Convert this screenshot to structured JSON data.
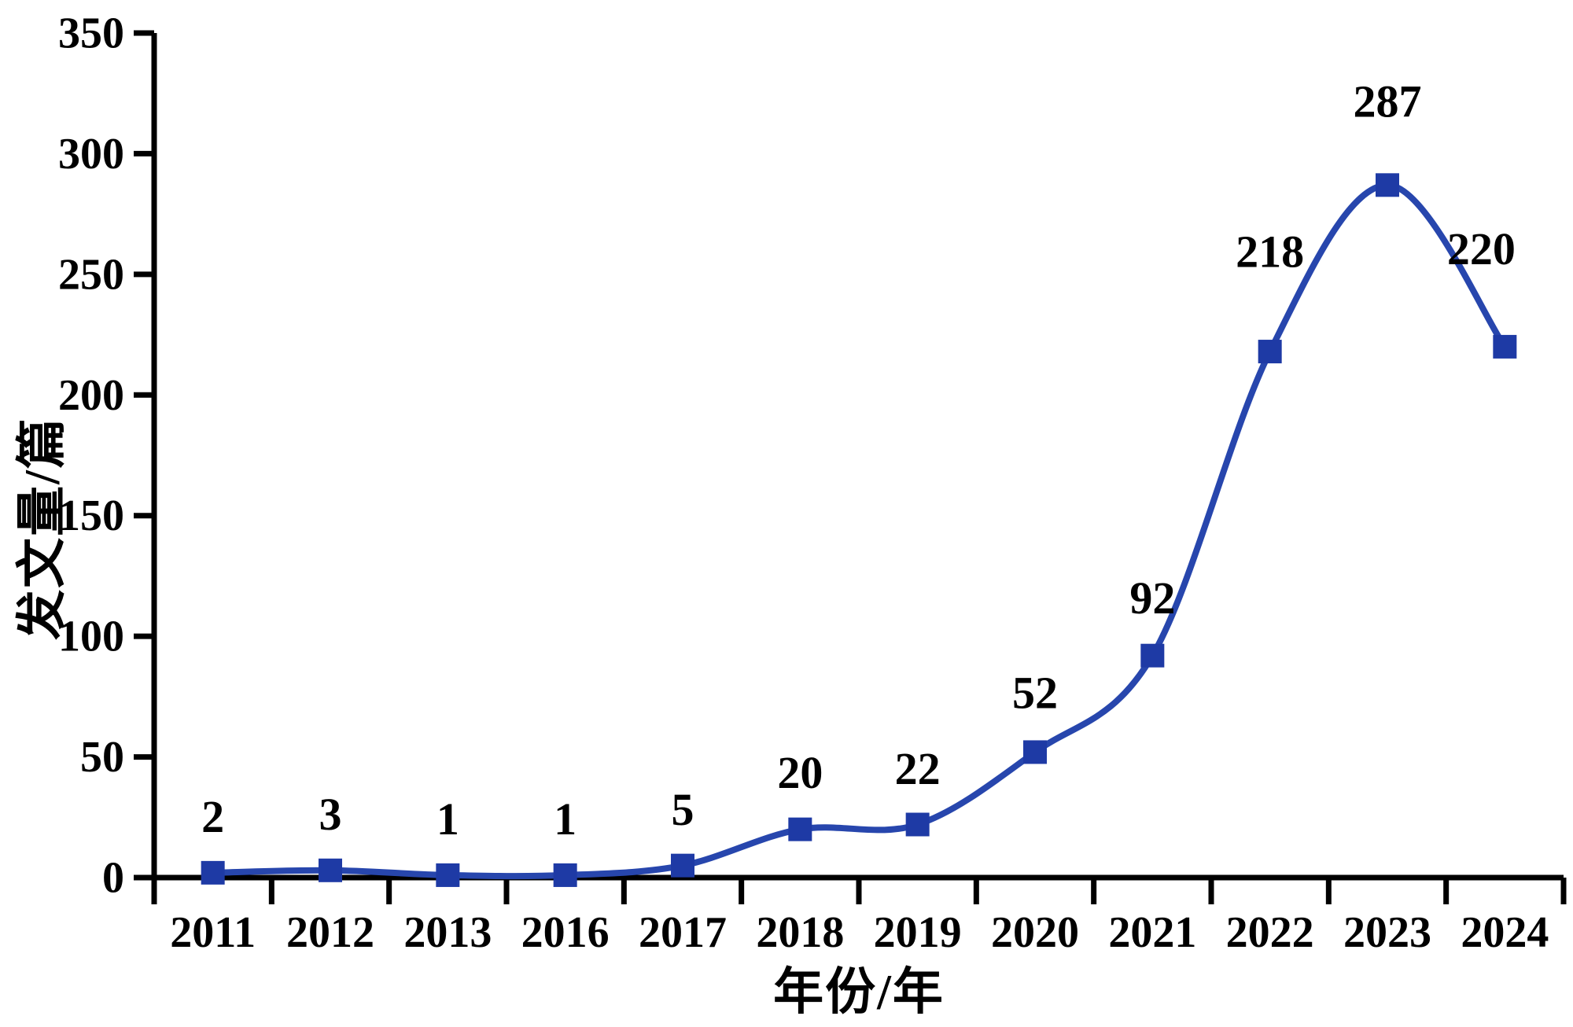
{
  "chart_data": {
    "type": "line",
    "title": "",
    "categories": [
      "2011",
      "2012",
      "2013",
      "2016",
      "2017",
      "2018",
      "2019",
      "2020",
      "2021",
      "2022",
      "2023",
      "2024"
    ],
    "values": [
      2,
      3,
      1,
      1,
      5,
      20,
      22,
      52,
      92,
      218,
      287,
      220
    ],
    "data_labels": [
      "2",
      "3",
      "1",
      "1",
      "5",
      "20",
      "22",
      "52",
      "92",
      "218",
      "287",
      "220"
    ],
    "xlabel": "年份/年",
    "ylabel": "发文量/篇",
    "ylim": [
      0,
      350
    ],
    "ytick_step": 50,
    "yticks": [
      0,
      50,
      100,
      150,
      200,
      250,
      300,
      350
    ],
    "grid": false,
    "legend": "none",
    "line_style": "smooth",
    "marker": "square",
    "colors": {
      "line": "#2746ad",
      "marker": "#1e3aa5",
      "axis": "#000000",
      "text": "#000000",
      "background": "#ffffff"
    },
    "layout_hints": {
      "x_ticks_between_categories": true,
      "label_dx": [
        0,
        0,
        0,
        0,
        0,
        0,
        0,
        0,
        0,
        0,
        0,
        -30
      ],
      "label_dy": [
        -72,
        -72,
        -72,
        -72,
        -72,
        -73,
        -72,
        -76,
        -74,
        -128,
        -107,
        -125
      ]
    }
  }
}
